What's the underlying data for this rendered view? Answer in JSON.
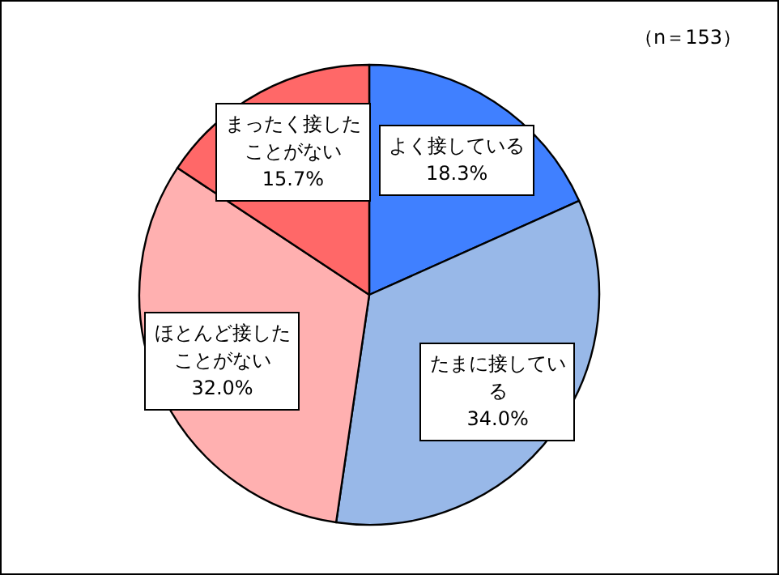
{
  "chart_data": {
    "type": "pie",
    "categories": [
      "よく接している",
      "たまに接している",
      "ほとんど接したことがない",
      "まったく接したことがない"
    ],
    "values": [
      18.3,
      34.0,
      32.0,
      15.7
    ],
    "colors": [
      "#4080ff",
      "#98b8e8",
      "#ffb0b0",
      "#ff6868"
    ],
    "value_labels": [
      "18.3%",
      "34.0%",
      "32.0%",
      "15.7%"
    ],
    "annotations": [
      "（n＝153）"
    ]
  }
}
